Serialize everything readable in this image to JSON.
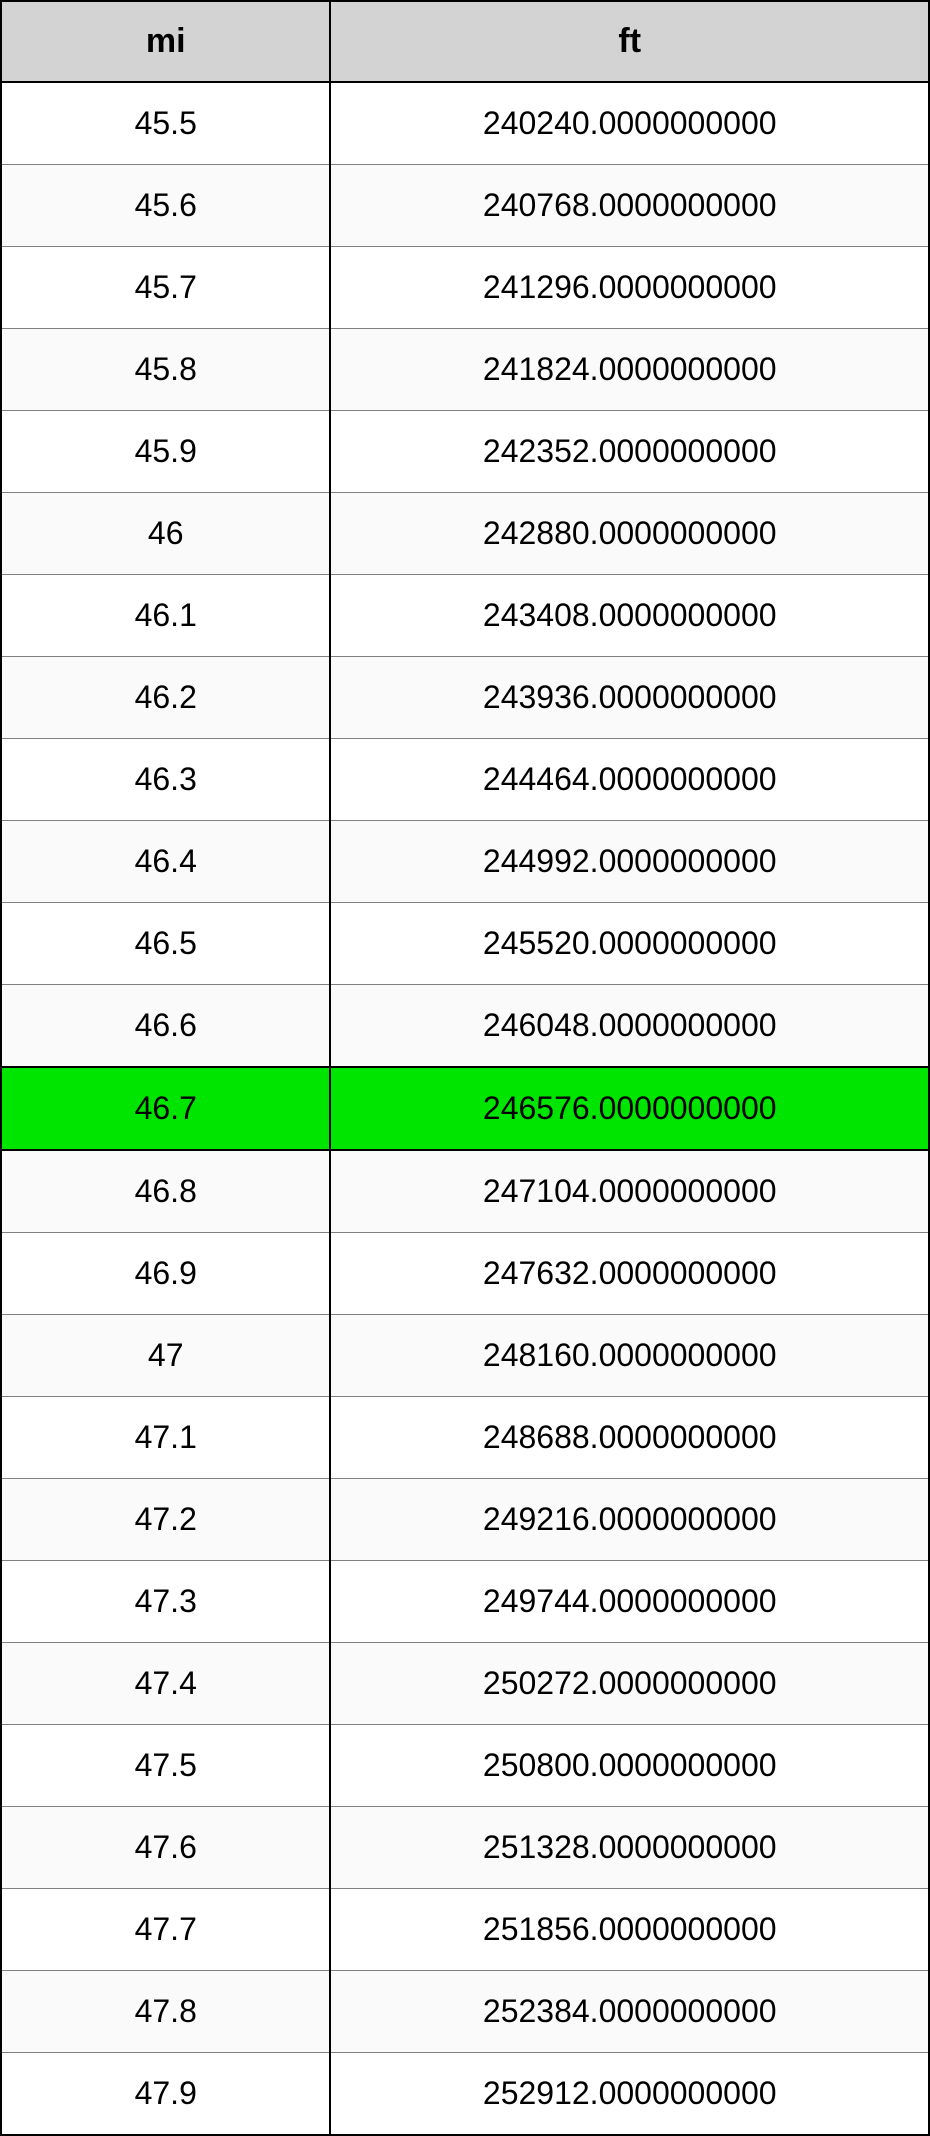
{
  "table": {
    "type": "table",
    "columns": [
      "mi",
      "ft"
    ],
    "header_bg_color": "#d3d3d3",
    "header_font_size": 34,
    "cell_font_size": 32,
    "border_color": "#000000",
    "row_border_color": "#808080",
    "alt_row_bg": "#fafafa",
    "highlight_bg": "#00e500",
    "highlight_index": 12,
    "col_widths": [
      "35.5%",
      "64.5%"
    ],
    "rows": [
      {
        "mi": "45.5",
        "ft": "240240.0000000000",
        "alt": false
      },
      {
        "mi": "45.6",
        "ft": "240768.0000000000",
        "alt": true
      },
      {
        "mi": "45.7",
        "ft": "241296.0000000000",
        "alt": false
      },
      {
        "mi": "45.8",
        "ft": "241824.0000000000",
        "alt": true
      },
      {
        "mi": "45.9",
        "ft": "242352.0000000000",
        "alt": false
      },
      {
        "mi": "46",
        "ft": "242880.0000000000",
        "alt": true
      },
      {
        "mi": "46.1",
        "ft": "243408.0000000000",
        "alt": false
      },
      {
        "mi": "46.2",
        "ft": "243936.0000000000",
        "alt": true
      },
      {
        "mi": "46.3",
        "ft": "244464.0000000000",
        "alt": false
      },
      {
        "mi": "46.4",
        "ft": "244992.0000000000",
        "alt": true
      },
      {
        "mi": "46.5",
        "ft": "245520.0000000000",
        "alt": false
      },
      {
        "mi": "46.6",
        "ft": "246048.0000000000",
        "alt": true
      },
      {
        "mi": "46.7",
        "ft": "246576.0000000000",
        "alt": false,
        "highlight": true
      },
      {
        "mi": "46.8",
        "ft": "247104.0000000000",
        "alt": true
      },
      {
        "mi": "46.9",
        "ft": "247632.0000000000",
        "alt": false
      },
      {
        "mi": "47",
        "ft": "248160.0000000000",
        "alt": true
      },
      {
        "mi": "47.1",
        "ft": "248688.0000000000",
        "alt": false
      },
      {
        "mi": "47.2",
        "ft": "249216.0000000000",
        "alt": true
      },
      {
        "mi": "47.3",
        "ft": "249744.0000000000",
        "alt": false
      },
      {
        "mi": "47.4",
        "ft": "250272.0000000000",
        "alt": true
      },
      {
        "mi": "47.5",
        "ft": "250800.0000000000",
        "alt": false
      },
      {
        "mi": "47.6",
        "ft": "251328.0000000000",
        "alt": true
      },
      {
        "mi": "47.7",
        "ft": "251856.0000000000",
        "alt": false
      },
      {
        "mi": "47.8",
        "ft": "252384.0000000000",
        "alt": true
      },
      {
        "mi": "47.9",
        "ft": "252912.0000000000",
        "alt": false
      }
    ]
  }
}
